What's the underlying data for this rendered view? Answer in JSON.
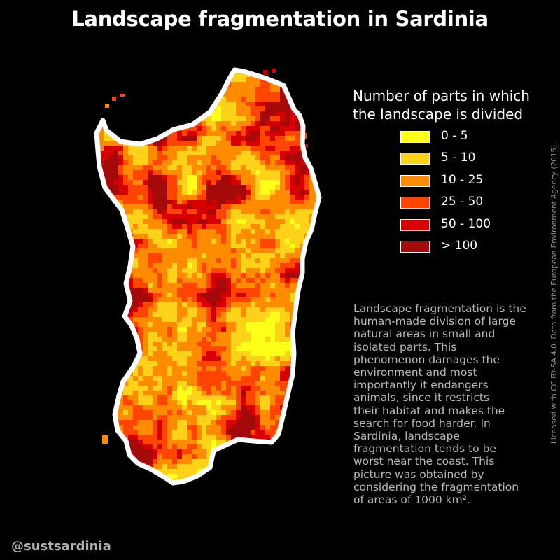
{
  "title": "Landscape fragmentation in Sardinia",
  "legend": {
    "title_lines": [
      "Number of parts in which",
      "the landscape is divided"
    ],
    "items": [
      {
        "label": "0 - 5",
        "color": "#FFFF1A"
      },
      {
        "label": "5 - 10",
        "color": "#FFD21A"
      },
      {
        "label": "10 - 25",
        "color": "#FF8C00"
      },
      {
        "label": "25 - 50",
        "color": "#FF4500"
      },
      {
        "label": "50 - 100",
        "color": "#D60000"
      },
      {
        "label": "> 100",
        "color": "#A50A0A"
      }
    ]
  },
  "description_lines": [
    "Landscape fragmentation is the",
    "human-made division of large",
    "natural areas in small and",
    "isolated parts. This",
    "phenomenon damages the",
    "environment and most",
    "importantly it endangers",
    "animals, since it restricts",
    "their habitat and makes the",
    "search for food harder. In",
    "Sardinia, landscape",
    "fragmentation tends to be",
    "worst near the coast. This",
    "picture was obtained by",
    "considering the fragmentation",
    "of areas of 1000 km²."
  ],
  "credit": "Licensed with CC BY-SA 4.0. Data from the European Environment Agency (2015).",
  "handle": "@sustsardinia",
  "colors": {
    "background": "#000000",
    "outline": "#FFFFFF",
    "text_muted": "#B8B8B8"
  }
}
